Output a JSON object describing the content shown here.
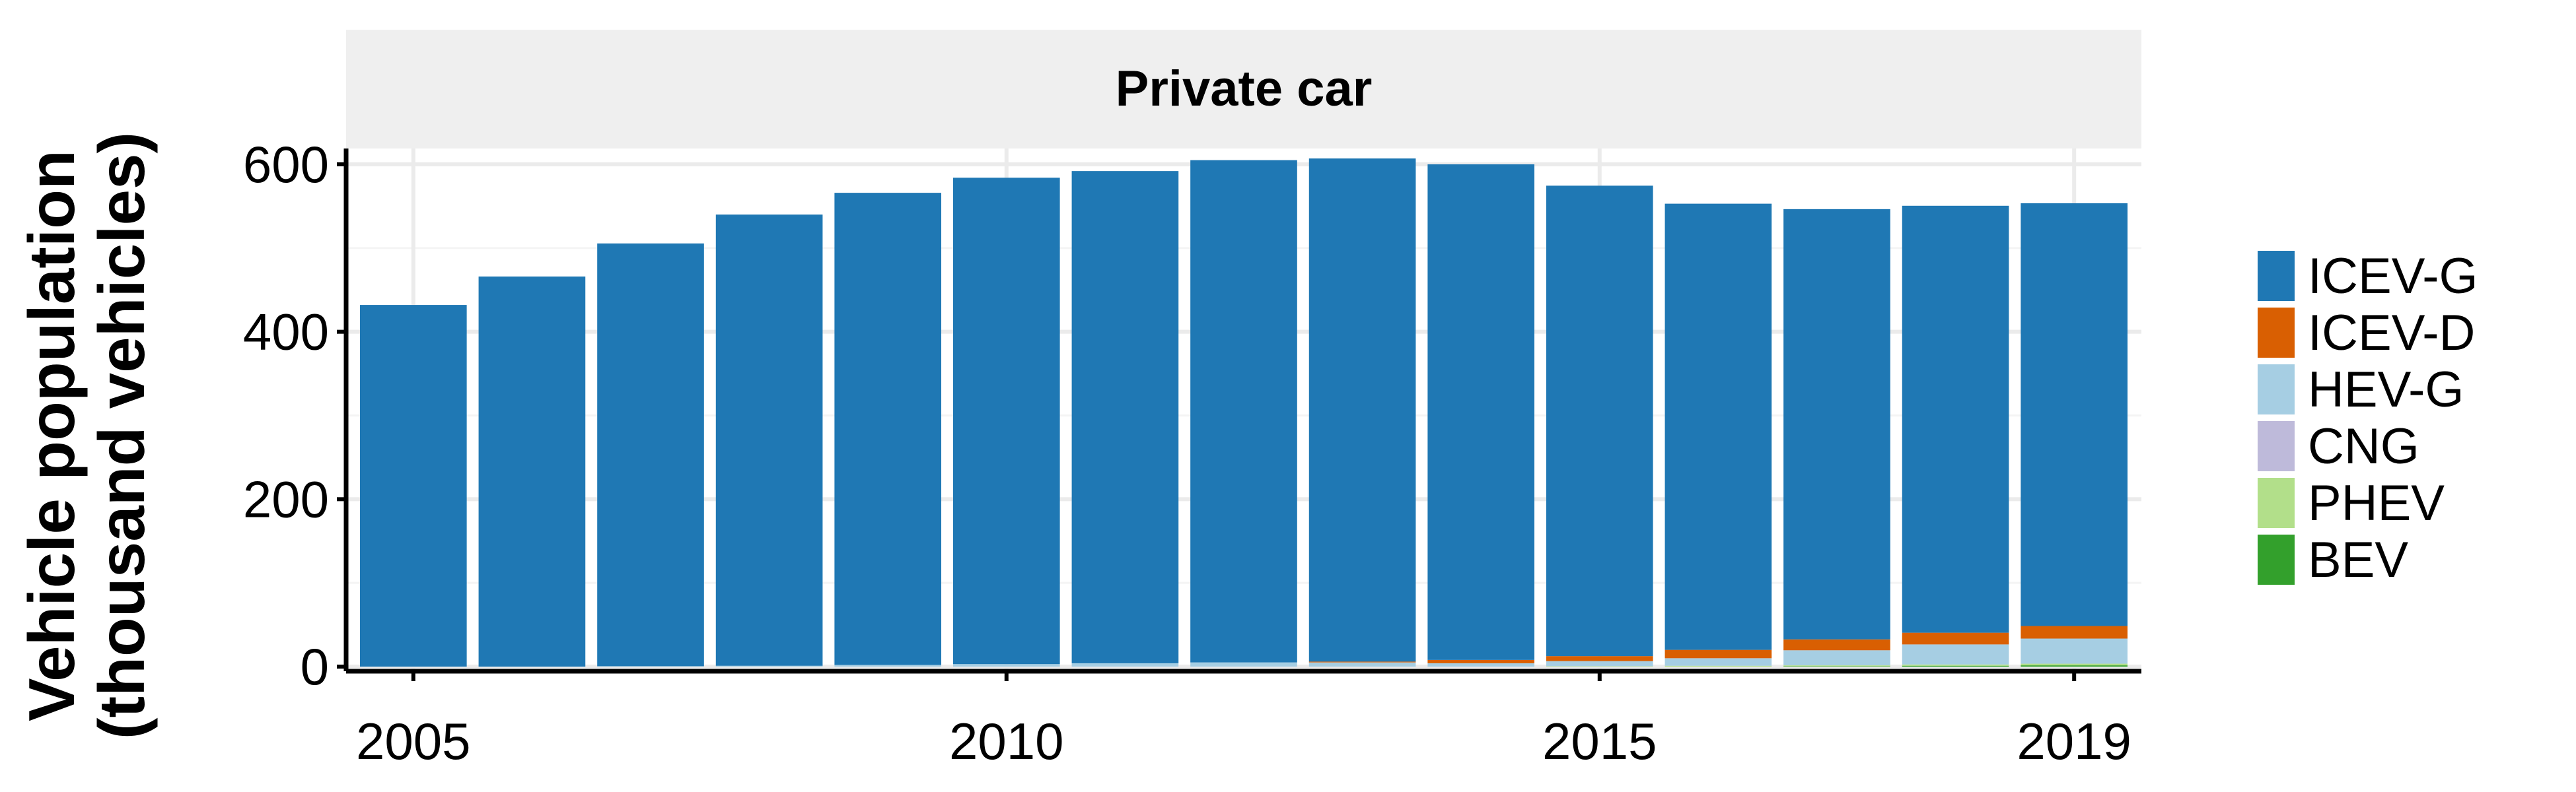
{
  "chart_data": {
    "type": "bar",
    "stacked": true,
    "facet_title": "Private car",
    "ylabel_line1": "Vehicle population",
    "ylabel_line2": "(thousand vehicles)",
    "xlabel": "",
    "ylim": [
      0,
      620
    ],
    "yticks": [
      0,
      200,
      400,
      600
    ],
    "xticks": [
      2005,
      2010,
      2015,
      2019
    ],
    "x": [
      2005,
      2006,
      2007,
      2008,
      2009,
      2010,
      2011,
      2012,
      2013,
      2014,
      2015,
      2016,
      2017,
      2018,
      2019
    ],
    "series": [
      {
        "name": "BEV",
        "color": "#33a02c",
        "values": [
          0,
          0,
          0,
          0,
          0,
          0,
          0,
          0,
          0,
          0,
          0,
          0,
          0.5,
          1,
          1.5
        ]
      },
      {
        "name": "PHEV",
        "color": "#b2df8a",
        "values": [
          0,
          0,
          0,
          0,
          0,
          0,
          0,
          0,
          0,
          0,
          0.5,
          1,
          1,
          1.5,
          2
        ]
      },
      {
        "name": "CNG",
        "color": "#bebada",
        "values": [
          0,
          0,
          0,
          0,
          0,
          0,
          0,
          0,
          0,
          0,
          0,
          0,
          0,
          0,
          0
        ]
      },
      {
        "name": "HEV-G",
        "color": "#a6cee3",
        "values": [
          0,
          0,
          0.5,
          1,
          2,
          3,
          4,
          5,
          5,
          4,
          6,
          9,
          18,
          24,
          30
        ]
      },
      {
        "name": "ICEV-D",
        "color": "#d95f02",
        "values": [
          0,
          0,
          0,
          0,
          0,
          0,
          0,
          0,
          1,
          4,
          6,
          10,
          13,
          14,
          15
        ]
      },
      {
        "name": "ICEV-G",
        "color": "#1f78b4",
        "values": [
          432,
          466,
          505,
          539,
          564,
          581,
          588,
          600,
          601,
          592,
          562,
          533,
          514,
          510,
          505
        ]
      }
    ],
    "legend_order": [
      "ICEV-G",
      "ICEV-D",
      "HEV-G",
      "CNG",
      "PHEV",
      "BEV"
    ],
    "legend_position": "right",
    "grid": true
  }
}
